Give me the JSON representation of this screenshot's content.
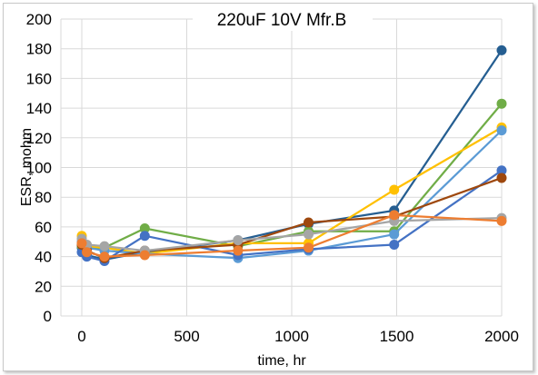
{
  "chart_data": {
    "type": "line",
    "title": "220uF 10V Mfr.B",
    "xlabel": "time, hr",
    "ylabel": "ESR, mohm",
    "xlim": [
      -100,
      2000
    ],
    "ylim": [
      0,
      200
    ],
    "xticks": [
      0,
      500,
      1000,
      1500,
      2000
    ],
    "yticks": [
      0,
      20,
      40,
      60,
      80,
      100,
      120,
      140,
      160,
      180,
      200
    ],
    "grid": true,
    "legend": "none",
    "series": [
      {
        "color": "#255e91",
        "x": [
          0,
          24,
          108,
          300,
          744,
          1080,
          1488,
          2000
        ],
        "y": [
          46,
          41,
          38,
          43,
          51,
          62,
          71,
          179
        ]
      },
      {
        "color": "#70ad47",
        "x": [
          0,
          24,
          108,
          300,
          744,
          1080,
          1488,
          2000
        ],
        "y": [
          47,
          45,
          46,
          59,
          47,
          57,
          57,
          143
        ]
      },
      {
        "color": "#ffc000",
        "x": [
          0,
          24,
          108,
          300,
          744,
          1080,
          1488,
          2000
        ],
        "y": [
          54,
          47,
          46,
          42,
          49,
          49,
          85,
          127
        ]
      },
      {
        "color": "#5b9bd5",
        "x": [
          0,
          24,
          108,
          300,
          744,
          1080,
          1488,
          2000
        ],
        "y": [
          50,
          46,
          44,
          42,
          39,
          44,
          55,
          125
        ]
      },
      {
        "color": "#4472c4",
        "x": [
          0,
          24,
          108,
          300,
          744,
          1080,
          1488,
          2000
        ],
        "y": [
          43,
          40,
          37,
          54,
          41,
          45,
          48,
          98
        ]
      },
      {
        "color": "#9e480e",
        "x": [
          0,
          24,
          108,
          300,
          744,
          1080,
          1488,
          2000
        ],
        "y": [
          48,
          44,
          39,
          44,
          48,
          63,
          67,
          93
        ]
      },
      {
        "color": "#a5a5a5",
        "x": [
          0,
          24,
          108,
          300,
          744,
          1080,
          1488,
          2000
        ],
        "y": [
          52,
          48,
          47,
          44,
          51,
          55,
          64,
          66
        ]
      },
      {
        "color": "#ed7d31",
        "x": [
          0,
          24,
          108,
          300,
          744,
          1080,
          1488,
          2000
        ],
        "y": [
          49,
          43,
          40,
          41,
          44,
          46,
          68,
          64
        ]
      }
    ]
  }
}
